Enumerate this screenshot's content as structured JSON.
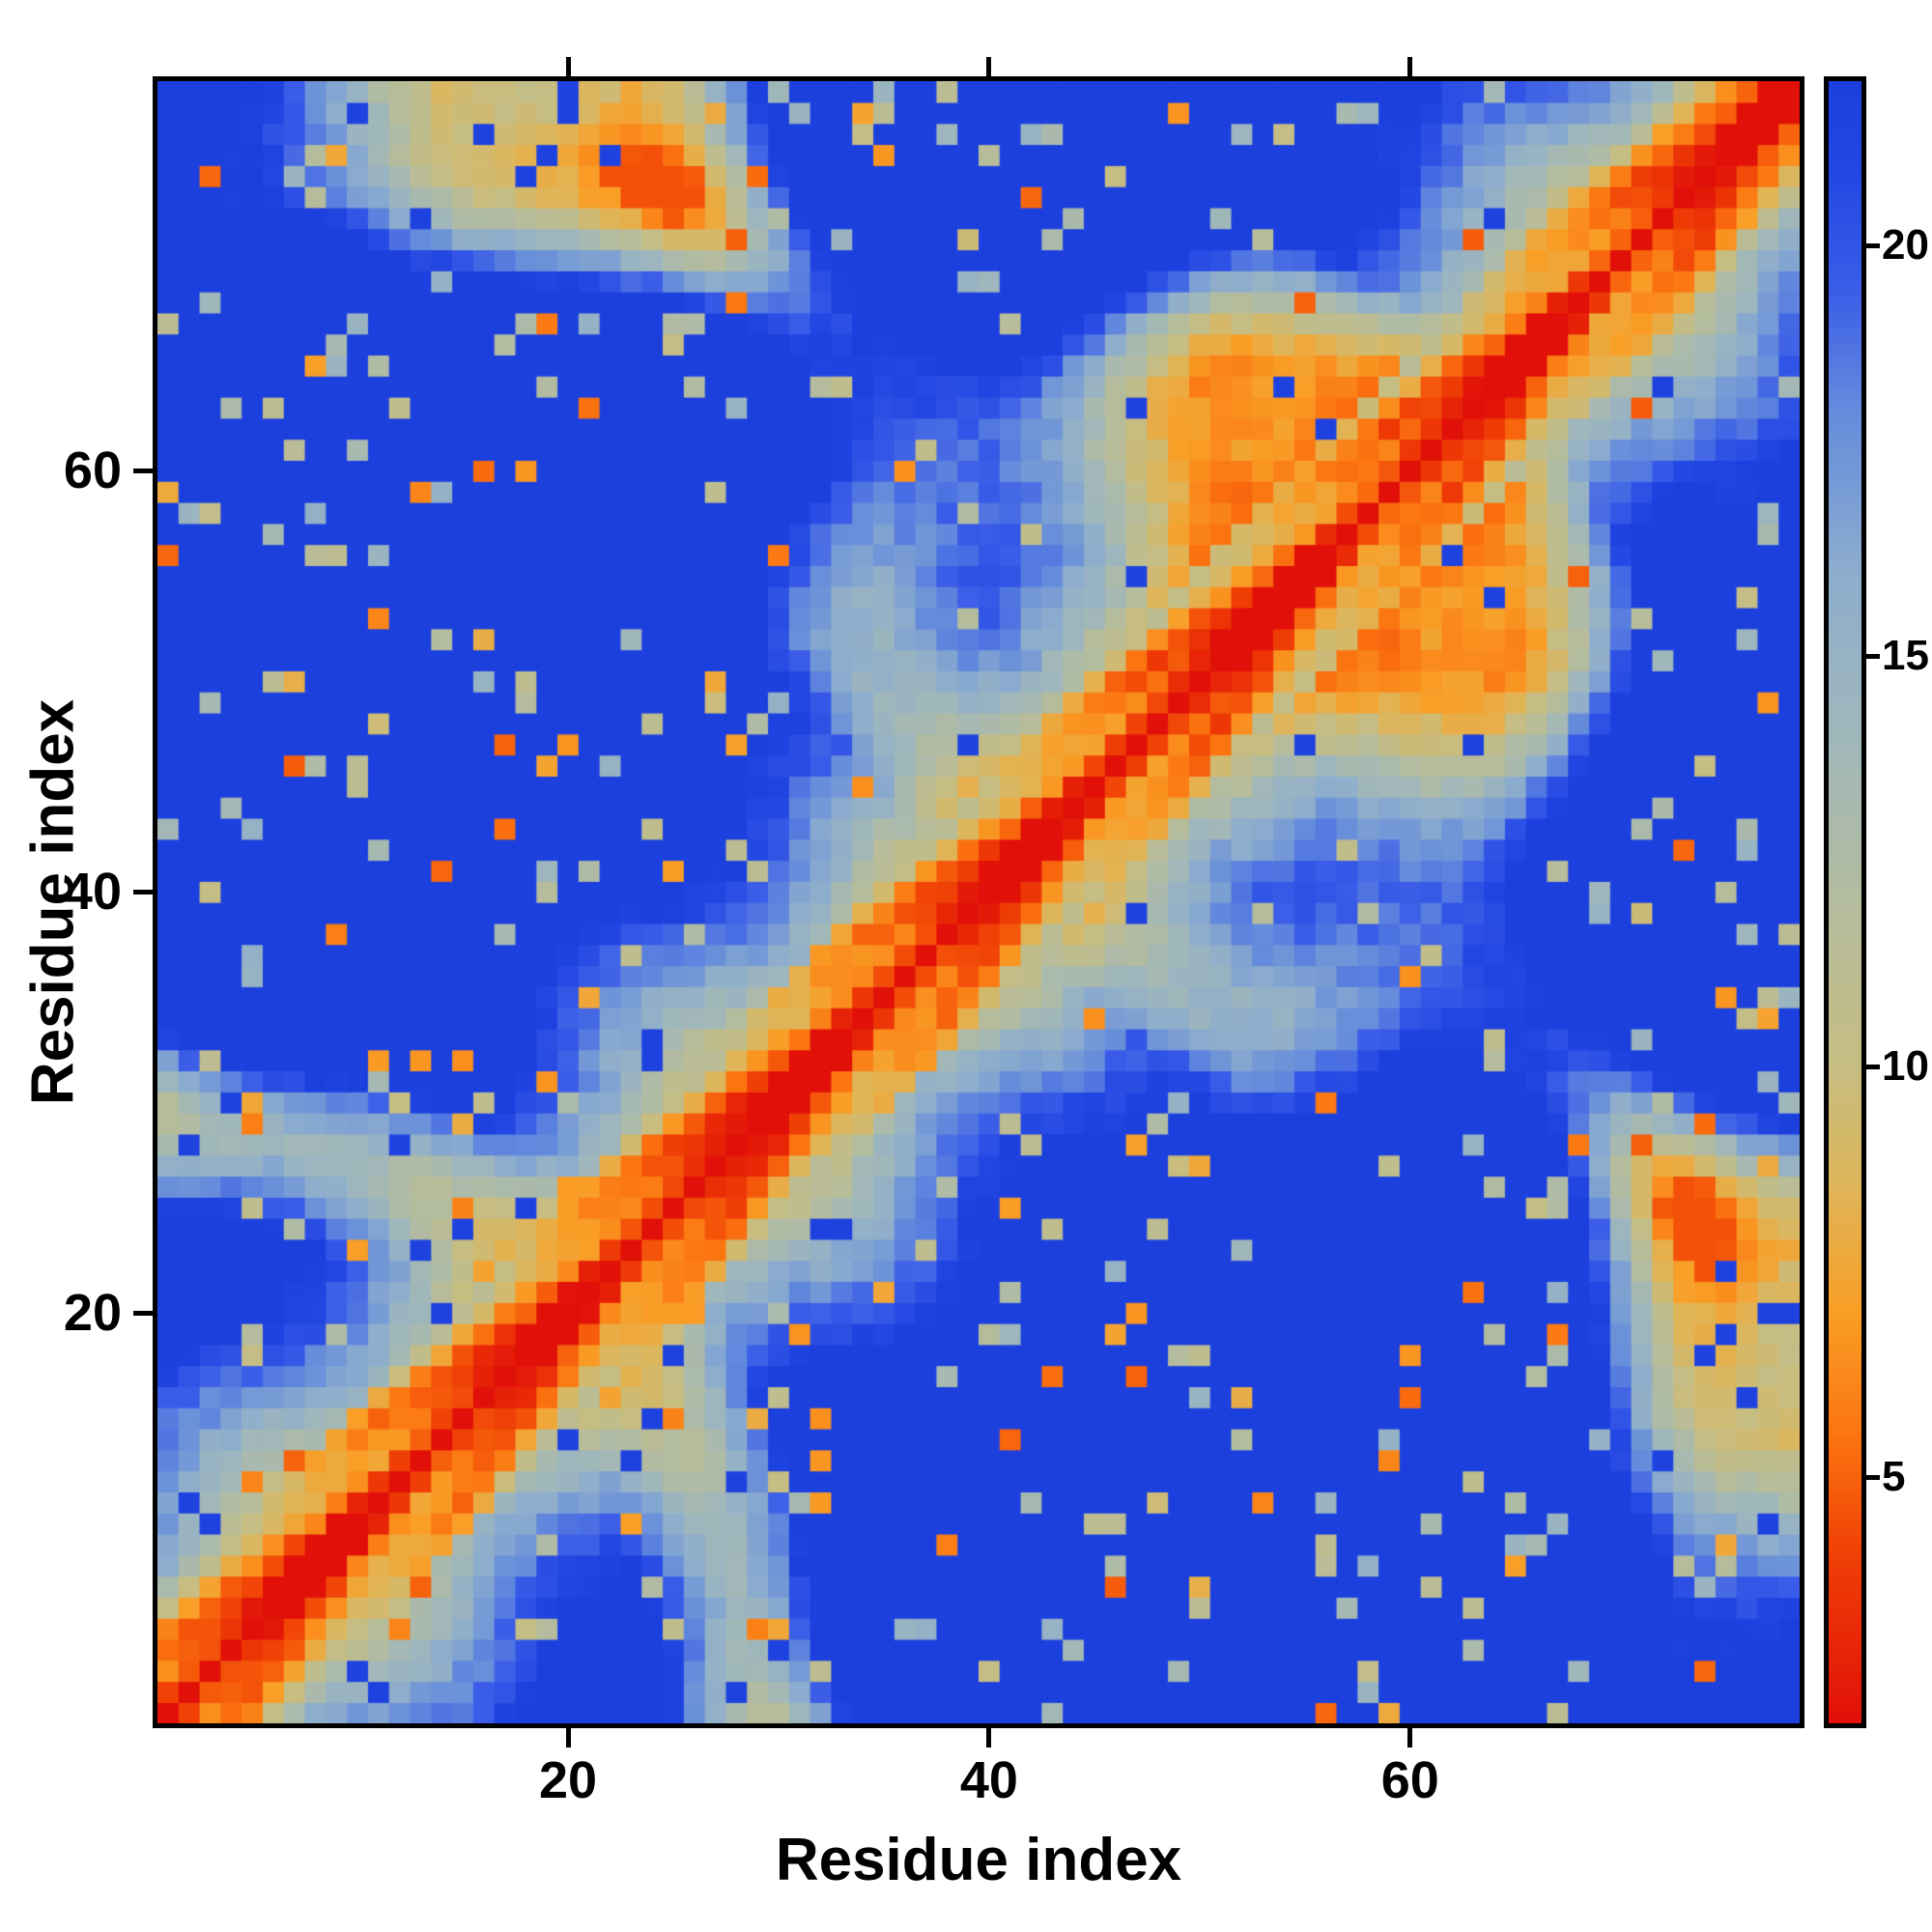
{
  "chart_data": {
    "type": "heatmap",
    "xlabel": "Residue index",
    "ylabel": "Residue index",
    "n_residues": 78,
    "x_range": [
      1,
      78
    ],
    "y_range": [
      1,
      78
    ],
    "x_ticks": [
      20,
      40,
      60
    ],
    "y_ticks": [
      20,
      40,
      60
    ],
    "grid": false,
    "plot_border_color": "#000000",
    "background_color": "#ffffff",
    "colorbar": {
      "orientation": "vertical",
      "position": "right",
      "min": 2,
      "max": 22,
      "ticks": [
        5,
        10,
        15,
        20
      ]
    },
    "colormap": [
      {
        "value": 2.0,
        "color": "#e11008"
      },
      {
        "value": 4.0,
        "color": "#ef3e06"
      },
      {
        "value": 5.5,
        "color": "#fb7410"
      },
      {
        "value": 7.0,
        "color": "#f99e26"
      },
      {
        "value": 8.5,
        "color": "#dfb558"
      },
      {
        "value": 10.0,
        "color": "#c6bd82"
      },
      {
        "value": 12.0,
        "color": "#b4bc9e"
      },
      {
        "value": 14.0,
        "color": "#a0b7ba"
      },
      {
        "value": 16.0,
        "color": "#8dadcd"
      },
      {
        "value": 18.0,
        "color": "#648bdc"
      },
      {
        "value": 19.5,
        "color": "#3a5ce8"
      },
      {
        "value": 21.0,
        "color": "#2146e2"
      },
      {
        "value": 22.0,
        "color": "#1c40de"
      }
    ],
    "matrix_model": {
      "representation": "procedural_estimate",
      "n": 78,
      "clamp": [
        0,
        22
      ],
      "backbone_step": 0.088,
      "harmonics": [
        {
          "ax": 16.5,
          "fx": 1.0,
          "px": 0.4,
          "ay": 15.0,
          "fy": 1.27,
          "py": 2.9,
          "az": 14.0,
          "fz": 0.83,
          "pz": 4.1
        },
        {
          "ax": 7.0,
          "fx": 2.9,
          "px": 1.25,
          "ay": 8.0,
          "fy": 2.3,
          "py": 0.7,
          "az": 6.0,
          "fz": 3.1,
          "pz": 2.5
        }
      ],
      "near_diagonal": [
        0,
        3.0,
        5.3,
        6.1,
        7.3,
        9.2
      ],
      "near_wobble_amp": 1.7,
      "near_wobble_freq": 0.55,
      "compact_coef": 4.6,
      "compact_exp": 0.57,
      "far_floor": 4.5,
      "noise_seed": 1234,
      "noise_amp": 1.6,
      "speckle_blue_prob": 0.05,
      "speckle_hole_prob": 0.06,
      "speckle_contact_prob": 0.022
    }
  }
}
